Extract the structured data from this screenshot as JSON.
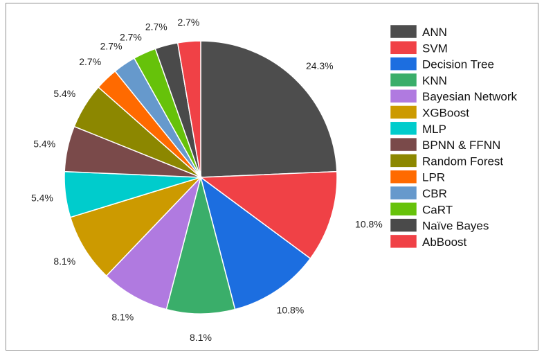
{
  "chart_data": {
    "type": "pie",
    "title": "",
    "start_angle_deg": 0,
    "direction": "clockwise",
    "legend_position": "right",
    "slices": [
      {
        "label": "ANN",
        "value": 24.3,
        "display": "24.3%",
        "color": "#4d4d4d"
      },
      {
        "label": "SVM",
        "value": 10.8,
        "display": "10.8%",
        "color": "#f04146"
      },
      {
        "label": "Decision Tree",
        "value": 10.8,
        "display": "10.8%",
        "color": "#1c6ee0"
      },
      {
        "label": "KNN",
        "value": 8.1,
        "display": "8.1%",
        "color": "#3aae6a"
      },
      {
        "label": "Bayesian Network",
        "value": 8.1,
        "display": "8.1%",
        "color": "#b07ae0"
      },
      {
        "label": "XGBoost",
        "value": 8.1,
        "display": "8.1%",
        "color": "#cc9a00"
      },
      {
        "label": "MLP",
        "value": 5.4,
        "display": "5.4%",
        "color": "#00cccc"
      },
      {
        "label": "BPNN & FFNN",
        "value": 5.4,
        "display": "5.4%",
        "color": "#7a4a4a"
      },
      {
        "label": "Random Forest",
        "value": 5.4,
        "display": "5.4%",
        "color": "#8c8700"
      },
      {
        "label": "LPR",
        "value": 2.7,
        "display": "2.7%",
        "color": "#ff6a00"
      },
      {
        "label": "CBR",
        "value": 2.7,
        "display": "2.7%",
        "color": "#6699cc"
      },
      {
        "label": "CaRT",
        "value": 2.7,
        "display": "2.7%",
        "color": "#66c20a"
      },
      {
        "label": "Naïve Bayes",
        "value": 2.7,
        "display": "2.7%",
        "color": "#4a4a4a"
      },
      {
        "label": "AbBoost",
        "value": 2.7,
        "display": "2.7%",
        "color": "#f04146"
      }
    ]
  }
}
